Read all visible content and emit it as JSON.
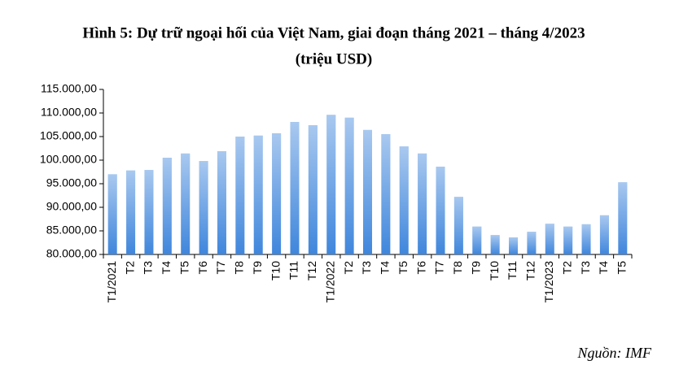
{
  "chart_data": {
    "type": "bar",
    "title": "Hình 5: Dự trữ ngoại hối của Việt Nam, giai đoạn tháng 2021 – tháng 4/2023",
    "subtitle": "(triệu USD)",
    "source": "Nguồn: IMF",
    "categories": [
      "T1/2021",
      "T2",
      "T3",
      "T4",
      "T5",
      "T6",
      "T7",
      "T8",
      "T9",
      "T10",
      "T11",
      "T12",
      "T1/2022",
      "T2",
      "T3",
      "T4",
      "T5",
      "T6",
      "T7",
      "T8",
      "T9",
      "T10",
      "T11",
      "T12",
      "T1/2023",
      "T2",
      "T3",
      "T4",
      "T5"
    ],
    "values": [
      97000,
      97800,
      97900,
      100500,
      101400,
      99800,
      101900,
      105000,
      105200,
      105700,
      108100,
      107400,
      109600,
      109000,
      106400,
      105500,
      102900,
      101400,
      98600,
      92200,
      85900,
      84100,
      83600,
      84800,
      86500,
      85900,
      86400,
      88300,
      95300
    ],
    "color": "#3f86dc",
    "ylim": [
      80000,
      115000
    ],
    "yticks": [
      {
        "value": 80000,
        "label": "80.000,00"
      },
      {
        "value": 85000,
        "label": "85.000,00"
      },
      {
        "value": 90000,
        "label": "90.000,00"
      },
      {
        "value": 95000,
        "label": "95.000,00"
      },
      {
        "value": 100000,
        "label": "100.000,00"
      },
      {
        "value": 105000,
        "label": "105.000,00"
      },
      {
        "value": 110000,
        "label": "110.000,00"
      },
      {
        "value": 115000,
        "label": "115.000,00"
      }
    ],
    "grid": false
  }
}
